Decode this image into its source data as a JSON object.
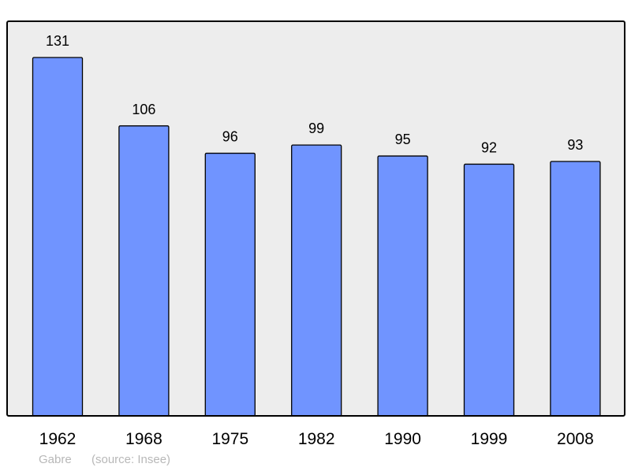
{
  "chart_data": {
    "type": "bar",
    "categories": [
      "1962",
      "1968",
      "1975",
      "1982",
      "1990",
      "1999",
      "2008"
    ],
    "values": [
      131,
      106,
      96,
      99,
      95,
      92,
      93
    ],
    "title": "",
    "xlabel": "",
    "ylabel": "",
    "ylim": [
      0,
      144
    ],
    "grid": false,
    "data_labels": true,
    "colors": {
      "bar": "#7094ff",
      "plot_background": "#ededed",
      "border": "#000000"
    }
  },
  "footer": {
    "place": "Gabre",
    "source": "(source: Insee)"
  }
}
